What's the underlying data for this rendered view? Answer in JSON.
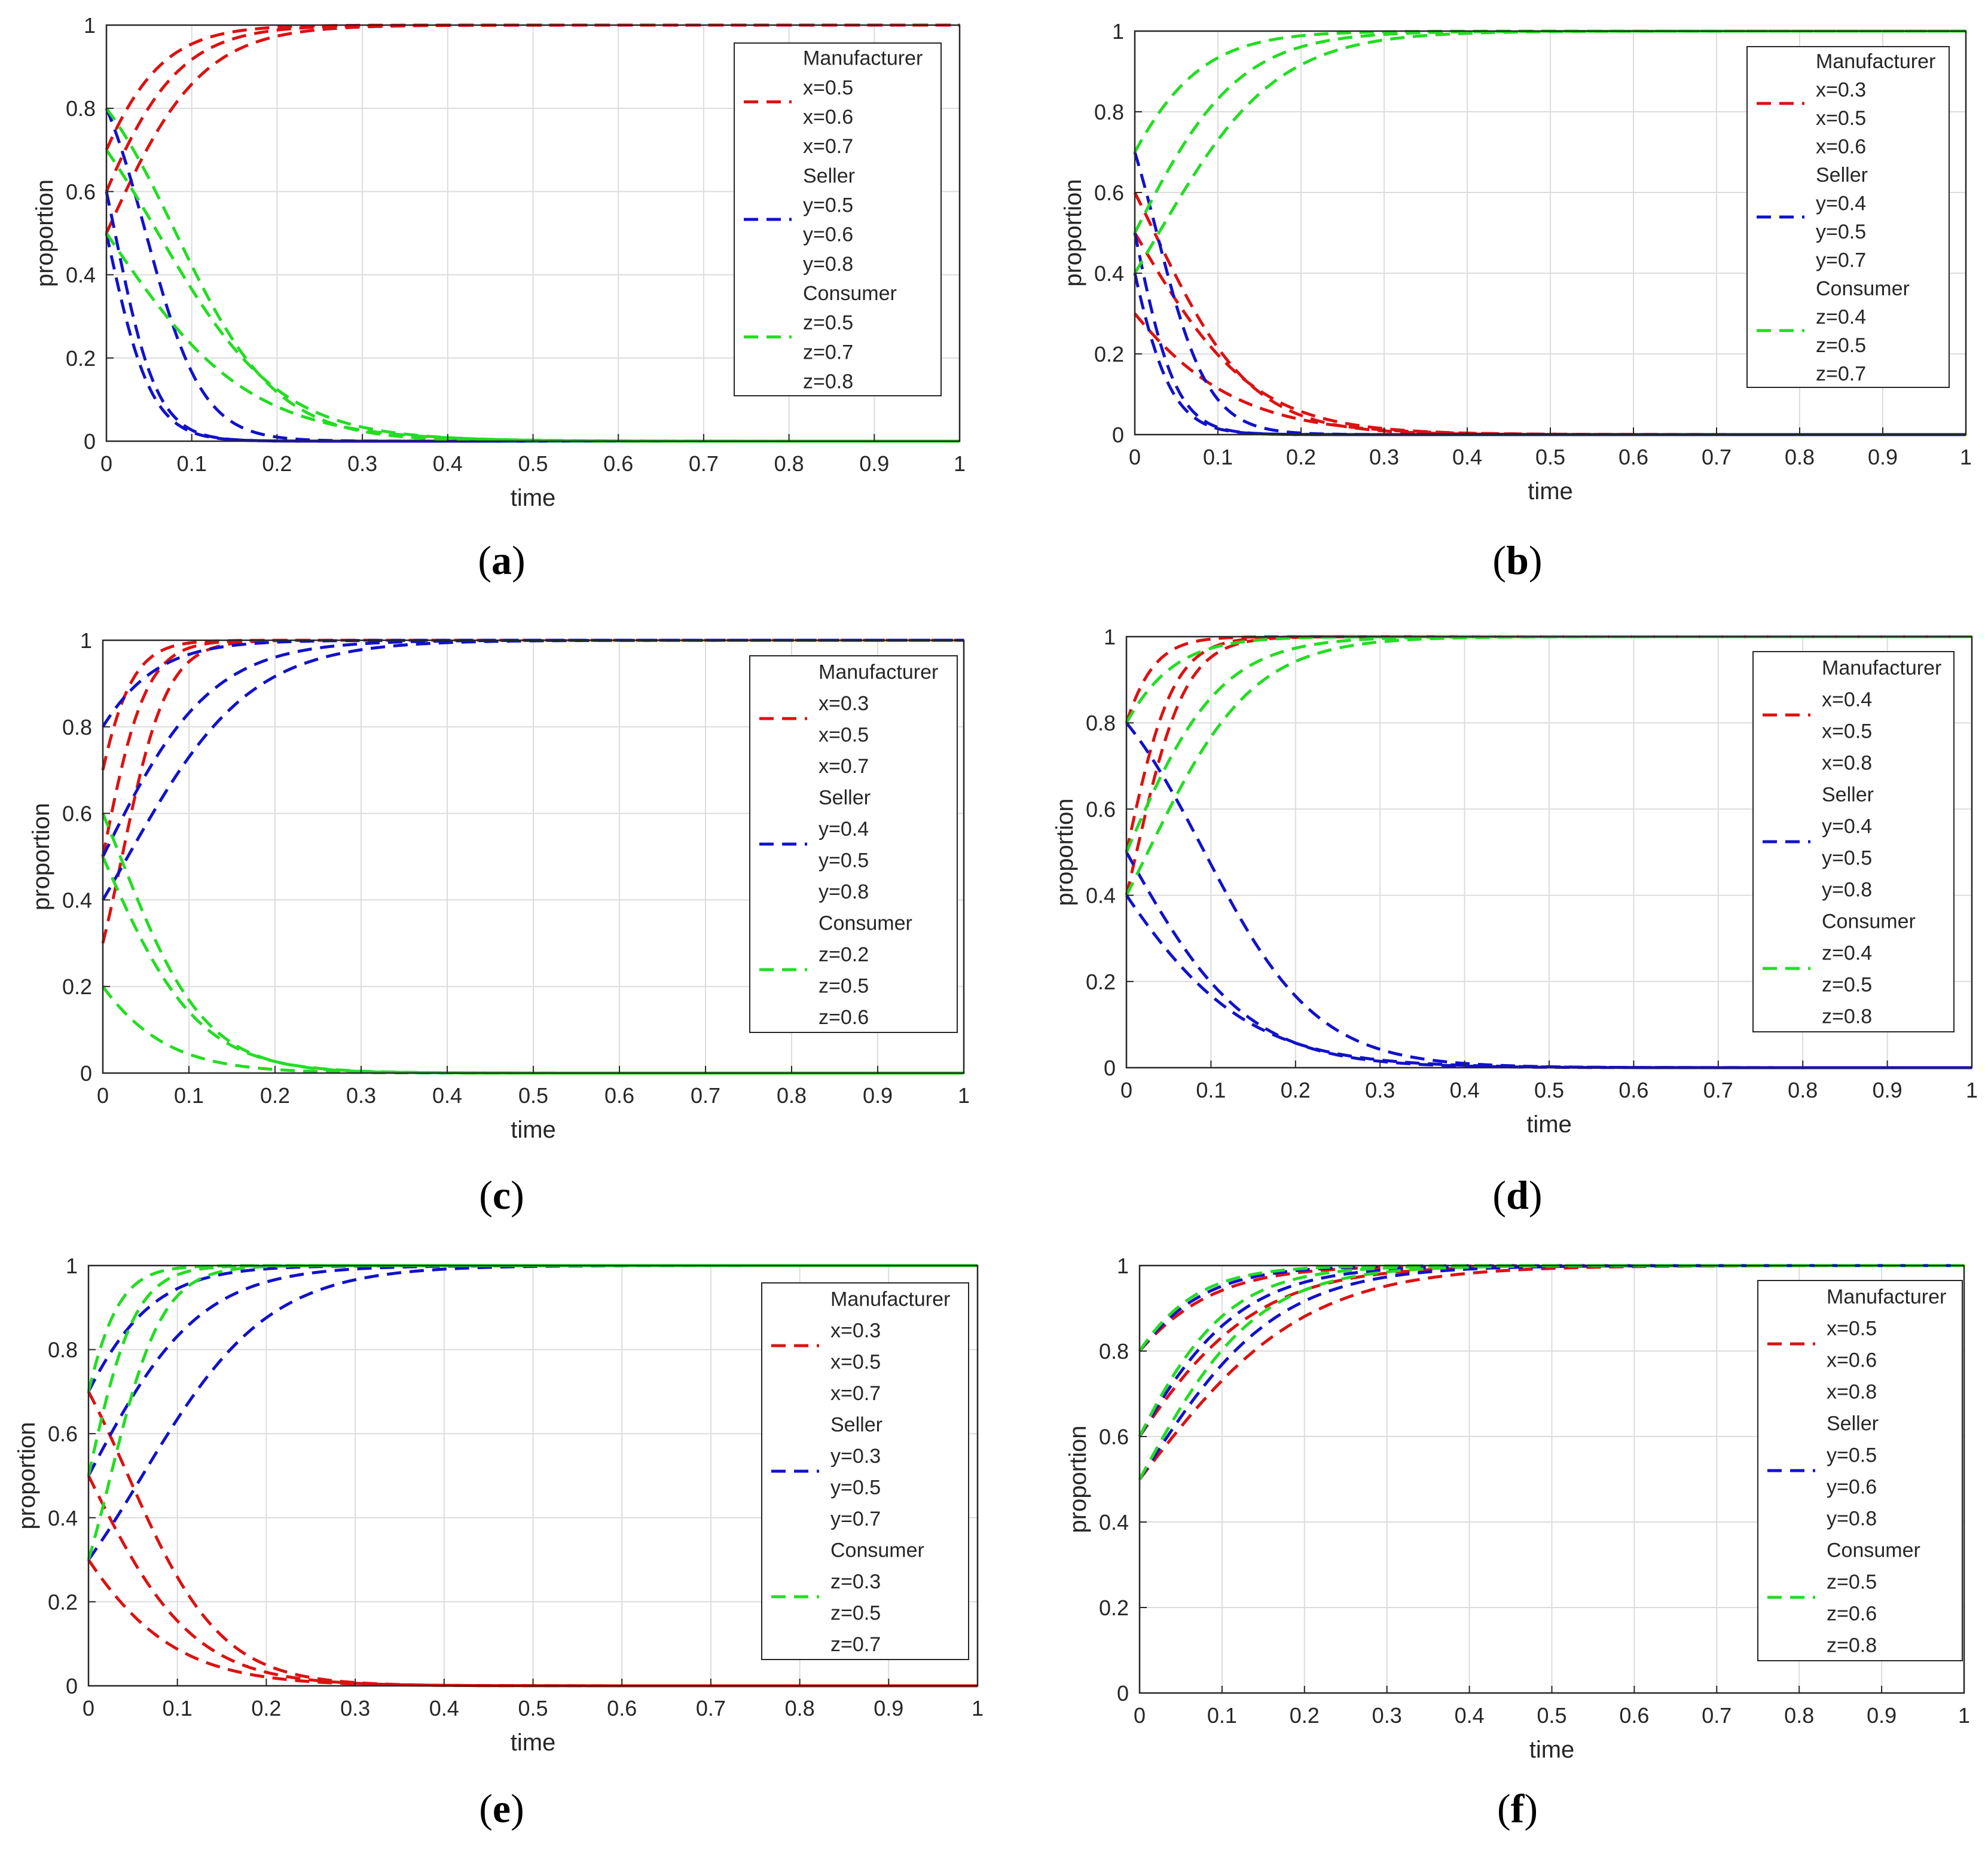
{
  "figure": {
    "panel_count": 6
  },
  "chart_data": [
    {
      "id": "a",
      "caption": "a",
      "type": "line",
      "xlabel": "time",
      "ylabel": "proportion",
      "xlim": [
        0,
        1
      ],
      "ylim": [
        0,
        1
      ],
      "xticks": [
        "0",
        "0.1",
        "0.2",
        "0.3",
        "0.4",
        "0.5",
        "0.6",
        "0.7",
        "0.8",
        "0.9",
        "1"
      ],
      "yticks": [
        "0",
        "0.2",
        "0.4",
        "0.6",
        "0.8",
        "1"
      ],
      "grid": true,
      "legend_position": "top-right",
      "groups": [
        {
          "name": "Manufacturer",
          "color": "#dd1111",
          "entries": [
            "x=0.5",
            "x=0.6",
            "x=0.7"
          ],
          "initial": [
            0.5,
            0.6,
            0.7
          ],
          "target": 1,
          "rates": [
            18,
            20,
            22
          ]
        },
        {
          "name": "Seller",
          "color": "#1111cc",
          "entries": [
            "y=0.5",
            "y=0.6",
            "y=0.8"
          ],
          "initial": [
            0.5,
            0.6,
            0.8
          ],
          "target": 0,
          "rates": [
            38,
            40,
            30
          ]
        },
        {
          "name": "Consumer",
          "color": "#22dd22",
          "entries": [
            "z=0.5",
            "z=0.7",
            "z=0.8"
          ],
          "initial": [
            0.5,
            0.7,
            0.8
          ],
          "target": 0,
          "rates": [
            12,
            14,
            17
          ]
        }
      ]
    },
    {
      "id": "b",
      "caption": "b",
      "type": "line",
      "xlabel": "time",
      "ylabel": "proportion",
      "xlim": [
        0,
        1
      ],
      "ylim": [
        0,
        1
      ],
      "xticks": [
        "0",
        "0.1",
        "0.2",
        "0.3",
        "0.4",
        "0.5",
        "0.6",
        "0.7",
        "0.8",
        "0.9",
        "1"
      ],
      "yticks": [
        "0",
        "0.2",
        "0.4",
        "0.6",
        "0.8",
        "1"
      ],
      "grid": true,
      "legend_position": "top-right",
      "groups": [
        {
          "name": "Manufacturer",
          "color": "#dd1111",
          "entries": [
            "x=0.3",
            "x=0.5",
            "x=0.6"
          ],
          "initial": [
            0.3,
            0.5,
            0.6
          ],
          "target": 0,
          "rates": [
            12,
            14,
            17
          ]
        },
        {
          "name": "Seller",
          "color": "#1111cc",
          "entries": [
            "y=0.4",
            "y=0.5",
            "y=0.7"
          ],
          "initial": [
            0.4,
            0.5,
            0.7
          ],
          "target": 0,
          "rates": [
            38,
            40,
            32
          ]
        },
        {
          "name": "Consumer",
          "color": "#22dd22",
          "entries": [
            "z=0.4",
            "z=0.5",
            "z=0.7"
          ],
          "initial": [
            0.4,
            0.5,
            0.7
          ],
          "target": 1,
          "rates": [
            14,
            16,
            18
          ]
        }
      ]
    },
    {
      "id": "c",
      "caption": "c",
      "type": "line",
      "xlabel": "time",
      "ylabel": "proportion",
      "xlim": [
        0,
        1
      ],
      "ylim": [
        0,
        1
      ],
      "xticks": [
        "0",
        "0.1",
        "0.2",
        "0.3",
        "0.4",
        "0.5",
        "0.6",
        "0.7",
        "0.8",
        "0.9",
        "1"
      ],
      "yticks": [
        "0",
        "0.2",
        "0.4",
        "0.6",
        "0.8",
        "1"
      ],
      "grid": true,
      "legend_position": "top-right",
      "groups": [
        {
          "name": "Manufacturer",
          "color": "#dd1111",
          "entries": [
            "x=0.3",
            "x=0.5",
            "x=0.7"
          ],
          "initial": [
            0.3,
            0.5,
            0.7
          ],
          "target": 1,
          "rates": [
            38,
            40,
            42
          ]
        },
        {
          "name": "Seller",
          "color": "#1111cc",
          "entries": [
            "y=0.4",
            "y=0.5",
            "y=0.8"
          ],
          "initial": [
            0.4,
            0.5,
            0.8
          ],
          "target": 1,
          "rates": [
            14,
            16,
            20
          ]
        },
        {
          "name": "Consumer",
          "color": "#22dd22",
          "entries": [
            "z=0.2",
            "z=0.5",
            "z=0.6"
          ],
          "initial": [
            0.2,
            0.5,
            0.6
          ],
          "target": 0,
          "rates": [
            17,
            18,
            20
          ]
        }
      ]
    },
    {
      "id": "d",
      "caption": "d",
      "type": "line",
      "xlabel": "time",
      "ylabel": "proportion",
      "xlim": [
        0,
        1
      ],
      "ylim": [
        0,
        1
      ],
      "xticks": [
        "0",
        "0.1",
        "0.2",
        "0.3",
        "0.4",
        "0.5",
        "0.6",
        "0.7",
        "0.8",
        "0.9",
        "1"
      ],
      "yticks": [
        "0",
        "0.2",
        "0.4",
        "0.6",
        "0.8",
        "1"
      ],
      "grid": true,
      "legend_position": "top-right",
      "groups": [
        {
          "name": "Manufacturer",
          "color": "#dd1111",
          "entries": [
            "x=0.4",
            "x=0.5",
            "x=0.8"
          ],
          "initial": [
            0.4,
            0.5,
            0.8
          ],
          "target": 1,
          "rates": [
            34,
            36,
            38
          ]
        },
        {
          "name": "Seller",
          "color": "#1111cc",
          "entries": [
            "y=0.4",
            "y=0.5",
            "y=0.8"
          ],
          "initial": [
            0.4,
            0.5,
            0.8
          ],
          "target": 0,
          "rates": [
            12,
            14,
            15
          ]
        },
        {
          "name": "Consumer",
          "color": "#22dd22",
          "entries": [
            "z=0.4",
            "z=0.5",
            "z=0.8"
          ],
          "initial": [
            0.4,
            0.5,
            0.8
          ],
          "target": 1,
          "rates": [
            16,
            18,
            22
          ]
        }
      ]
    },
    {
      "id": "e",
      "caption": "e",
      "type": "line",
      "xlabel": "time",
      "ylabel": "proportion",
      "xlim": [
        0,
        1
      ],
      "ylim": [
        0,
        1
      ],
      "xticks": [
        "0",
        "0.1",
        "0.2",
        "0.3",
        "0.4",
        "0.5",
        "0.6",
        "0.7",
        "0.8",
        "0.9",
        "1"
      ],
      "yticks": [
        "0",
        "0.2",
        "0.4",
        "0.6",
        "0.8",
        "1"
      ],
      "grid": true,
      "legend_position": "top-right",
      "groups": [
        {
          "name": "Manufacturer",
          "color": "#dd1111",
          "entries": [
            "x=0.3",
            "x=0.5",
            "x=0.7"
          ],
          "initial": [
            0.3,
            0.5,
            0.7
          ],
          "target": 0,
          "rates": [
            15,
            17,
            19
          ]
        },
        {
          "name": "Seller",
          "color": "#1111cc",
          "entries": [
            "y=0.3",
            "y=0.5",
            "y=0.7"
          ],
          "initial": [
            0.3,
            0.5,
            0.7
          ],
          "target": 1,
          "rates": [
            14,
            16,
            20
          ]
        },
        {
          "name": "Consumer",
          "color": "#22dd22",
          "entries": [
            "z=0.3",
            "z=0.5",
            "z=0.7"
          ],
          "initial": [
            0.3,
            0.5,
            0.7
          ],
          "target": 1,
          "rates": [
            34,
            38,
            42
          ]
        }
      ]
    },
    {
      "id": "f",
      "caption": "f",
      "type": "line",
      "xlabel": "time",
      "ylabel": "proportion",
      "xlim": [
        0,
        1
      ],
      "ylim": [
        0,
        1
      ],
      "xticks": [
        "0",
        "0.1",
        "0.2",
        "0.3",
        "0.4",
        "0.5",
        "0.6",
        "0.7",
        "0.8",
        "0.9",
        "1"
      ],
      "yticks": [
        "0",
        "0.2",
        "0.4",
        "0.6",
        "0.8",
        "1"
      ],
      "grid": true,
      "legend_position": "top-right",
      "groups": [
        {
          "name": "Manufacturer",
          "color": "#dd1111",
          "entries": [
            "x=0.5",
            "x=0.6",
            "x=0.8"
          ],
          "initial": [
            0.5,
            0.6,
            0.8
          ],
          "target": 1,
          "rates": [
            10,
            12,
            14
          ]
        },
        {
          "name": "Seller",
          "color": "#1111cc",
          "entries": [
            "y=0.5",
            "y=0.6",
            "y=0.8"
          ],
          "initial": [
            0.5,
            0.6,
            0.8
          ],
          "target": 1,
          "rates": [
            12,
            14,
            16
          ]
        },
        {
          "name": "Consumer",
          "color": "#22dd22",
          "entries": [
            "z=0.5",
            "z=0.6",
            "z=0.8"
          ],
          "initial": [
            0.5,
            0.6,
            0.8
          ],
          "target": 1,
          "rates": [
            14,
            16,
            18
          ]
        }
      ]
    }
  ]
}
